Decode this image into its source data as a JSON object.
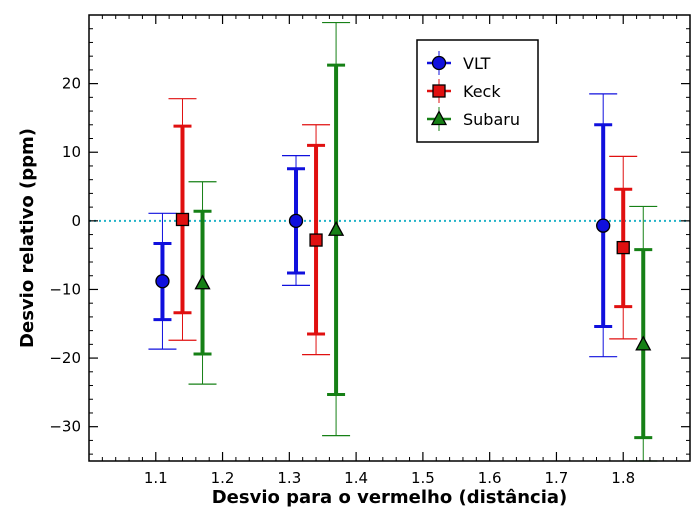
{
  "chart_data": {
    "type": "scatter",
    "title": "",
    "xlabel": "Desvio para o vermelho (distância)",
    "ylabel": "Desvio relativo (ppm)",
    "xlim": [
      1.0,
      1.9
    ],
    "ylim": [
      -35,
      30
    ],
    "xticks": [
      1.1,
      1.2,
      1.3,
      1.4,
      1.5,
      1.6,
      1.7,
      1.8
    ],
    "xtick_labels": [
      "1.1",
      "1.2",
      "1.3",
      "1.4",
      "1.5",
      "1.6",
      "1.7",
      "1.8"
    ],
    "yticks": [
      -30,
      -20,
      -10,
      0,
      10,
      20
    ],
    "ytick_labels": [
      "−30",
      "−20",
      "−10",
      "0",
      "10",
      "20"
    ],
    "reference_line": {
      "y": 0,
      "style": "dotted",
      "color": "#22b2c8"
    },
    "legend_position": "top-right",
    "series": [
      {
        "name": "VLT",
        "marker": "circle",
        "color": "#1010dd",
        "points": [
          {
            "x": 1.11,
            "y": -8.8,
            "err1": [
              -14.4,
              -3.3
            ],
            "err2": [
              -18.7,
              1.1
            ]
          },
          {
            "x": 1.31,
            "y": 0.0,
            "err1": [
              -7.6,
              7.6
            ],
            "err2": [
              -9.4,
              9.5
            ]
          },
          {
            "x": 1.77,
            "y": -0.7,
            "err1": [
              -15.4,
              14.0
            ],
            "err2": [
              -19.8,
              18.5
            ]
          }
        ]
      },
      {
        "name": "Keck",
        "marker": "square",
        "color": "#e01010",
        "points": [
          {
            "x": 1.14,
            "y": 0.2,
            "err1": [
              -13.4,
              13.8
            ],
            "err2": [
              -17.4,
              17.8
            ]
          },
          {
            "x": 1.34,
            "y": -2.8,
            "err1": [
              -16.5,
              11.0
            ],
            "err2": [
              -19.5,
              14.0
            ]
          },
          {
            "x": 1.8,
            "y": -3.9,
            "err1": [
              -12.5,
              4.6
            ],
            "err2": [
              -17.2,
              9.4
            ]
          }
        ]
      },
      {
        "name": "Subaru",
        "marker": "triangle",
        "color": "#168016",
        "points": [
          {
            "x": 1.17,
            "y": -9.1,
            "err1": [
              -19.4,
              1.4
            ],
            "err2": [
              -23.8,
              5.7
            ]
          },
          {
            "x": 1.37,
            "y": -1.3,
            "err1": [
              -25.3,
              22.7
            ],
            "err2": [
              -31.3,
              28.9
            ]
          },
          {
            "x": 1.83,
            "y": -18.0,
            "err1": [
              -31.6,
              -4.2
            ],
            "err2": [
              -35.0,
              2.1
            ]
          }
        ]
      }
    ]
  }
}
